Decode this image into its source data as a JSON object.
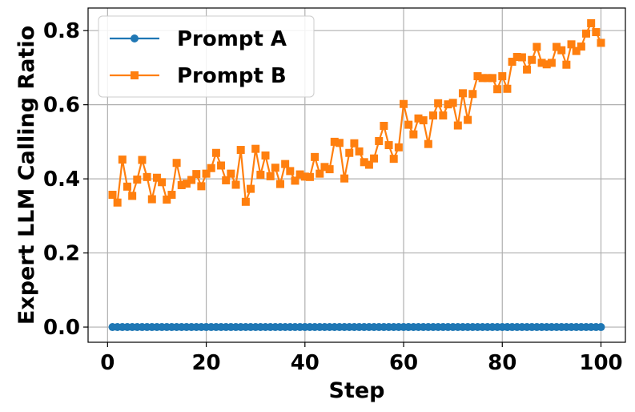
{
  "chart_data": {
    "type": "line",
    "xlabel": "Step",
    "ylabel": "Expert LLM Calling Ratio",
    "xlim": [
      -3.95,
      104.95
    ],
    "ylim": [
      -0.041,
      0.861
    ],
    "xticks": [
      0,
      20,
      40,
      60,
      80,
      100
    ],
    "yticks": [
      0.0,
      0.2,
      0.4,
      0.6,
      0.8
    ],
    "xtick_labels": [
      "0",
      "20",
      "40",
      "60",
      "80",
      "100"
    ],
    "ytick_labels": [
      "0.0",
      "0.2",
      "0.4",
      "0.6",
      "0.8"
    ],
    "grid": true,
    "legend_position": "top-left",
    "series": [
      {
        "name": "Prompt A",
        "color": "#1f77b4",
        "marker": "circle",
        "x": [
          1,
          2,
          3,
          4,
          5,
          6,
          7,
          8,
          9,
          10,
          11,
          12,
          13,
          14,
          15,
          16,
          17,
          18,
          19,
          20,
          21,
          22,
          23,
          24,
          25,
          26,
          27,
          28,
          29,
          30,
          31,
          32,
          33,
          34,
          35,
          36,
          37,
          38,
          39,
          40,
          41,
          42,
          43,
          44,
          45,
          46,
          47,
          48,
          49,
          50,
          51,
          52,
          53,
          54,
          55,
          56,
          57,
          58,
          59,
          60,
          61,
          62,
          63,
          64,
          65,
          66,
          67,
          68,
          69,
          70,
          71,
          72,
          73,
          74,
          75,
          76,
          77,
          78,
          79,
          80,
          81,
          82,
          83,
          84,
          85,
          86,
          87,
          88,
          89,
          90,
          91,
          92,
          93,
          94,
          95,
          96,
          97,
          98,
          99,
          100
        ],
        "values": [
          0,
          0,
          0,
          0,
          0,
          0,
          0,
          0,
          0,
          0,
          0,
          0,
          0,
          0,
          0,
          0,
          0,
          0,
          0,
          0,
          0,
          0,
          0,
          0,
          0,
          0,
          0,
          0,
          0,
          0,
          0,
          0,
          0,
          0,
          0,
          0,
          0,
          0,
          0,
          0,
          0,
          0,
          0,
          0,
          0,
          0,
          0,
          0,
          0,
          0,
          0,
          0,
          0,
          0,
          0,
          0,
          0,
          0,
          0,
          0,
          0,
          0,
          0,
          0,
          0,
          0,
          0,
          0,
          0,
          0,
          0,
          0,
          0,
          0,
          0,
          0,
          0,
          0,
          0,
          0,
          0,
          0,
          0,
          0,
          0,
          0,
          0,
          0,
          0,
          0,
          0,
          0,
          0,
          0,
          0,
          0,
          0,
          0,
          0,
          0
        ]
      },
      {
        "name": "Prompt B",
        "color": "#ff7f0e",
        "marker": "square",
        "x": [
          1,
          2,
          3,
          4,
          5,
          6,
          7,
          8,
          9,
          10,
          11,
          12,
          13,
          14,
          15,
          16,
          17,
          18,
          19,
          20,
          21,
          22,
          23,
          24,
          25,
          26,
          27,
          28,
          29,
          30,
          31,
          32,
          33,
          34,
          35,
          36,
          37,
          38,
          39,
          40,
          41,
          42,
          43,
          44,
          45,
          46,
          47,
          48,
          49,
          50,
          51,
          52,
          53,
          54,
          55,
          56,
          57,
          58,
          59,
          60,
          61,
          62,
          63,
          64,
          65,
          66,
          67,
          68,
          69,
          70,
          71,
          72,
          73,
          74,
          75,
          76,
          77,
          78,
          79,
          80,
          81,
          82,
          83,
          84,
          85,
          86,
          87,
          88,
          89,
          90,
          91,
          92,
          93,
          94,
          95,
          96,
          97,
          98,
          99,
          100
        ],
        "values": [
          0.357,
          0.336,
          0.452,
          0.379,
          0.354,
          0.398,
          0.451,
          0.405,
          0.345,
          0.403,
          0.391,
          0.344,
          0.357,
          0.443,
          0.383,
          0.387,
          0.397,
          0.413,
          0.38,
          0.414,
          0.429,
          0.47,
          0.436,
          0.396,
          0.414,
          0.384,
          0.478,
          0.338,
          0.373,
          0.481,
          0.411,
          0.463,
          0.407,
          0.43,
          0.386,
          0.44,
          0.421,
          0.395,
          0.412,
          0.406,
          0.405,
          0.459,
          0.414,
          0.432,
          0.426,
          0.5,
          0.497,
          0.401,
          0.47,
          0.496,
          0.474,
          0.445,
          0.438,
          0.455,
          0.502,
          0.543,
          0.491,
          0.454,
          0.485,
          0.602,
          0.546,
          0.52,
          0.563,
          0.558,
          0.494,
          0.571,
          0.604,
          0.571,
          0.601,
          0.605,
          0.544,
          0.631,
          0.559,
          0.629,
          0.677,
          0.672,
          0.672,
          0.672,
          0.642,
          0.677,
          0.643,
          0.716,
          0.729,
          0.728,
          0.695,
          0.721,
          0.756,
          0.713,
          0.709,
          0.713,
          0.756,
          0.747,
          0.708,
          0.763,
          0.745,
          0.757,
          0.792,
          0.82,
          0.796,
          0.767
        ]
      }
    ]
  }
}
